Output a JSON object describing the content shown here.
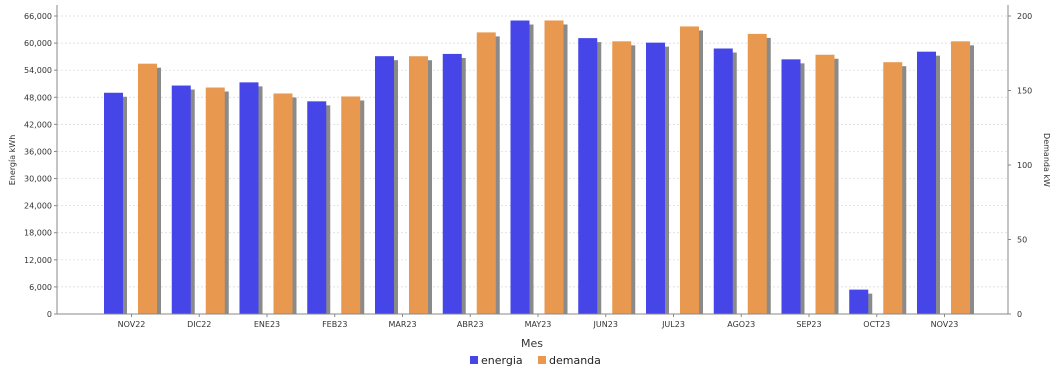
{
  "chart_data": {
    "type": "bar",
    "xlabel": "Mes",
    "ylabel_left": "Energía kWh",
    "ylabel_right": "Demanda kW",
    "categories": [
      "NOV22",
      "DIC22",
      "ENE23",
      "FEB23",
      "MAR23",
      "ABR23",
      "MAY23",
      "JUN23",
      "JUL23",
      "AGO23",
      "SEP23",
      "OCT23",
      "NOV23"
    ],
    "left_axis": {
      "min": 0,
      "max": 66000,
      "ticks": [
        0,
        6000,
        12000,
        18000,
        24000,
        30000,
        36000,
        42000,
        48000,
        54000,
        60000,
        66000
      ],
      "tick_labels": [
        "0",
        "6,000",
        "12,000",
        "18,000",
        "24,000",
        "30,000",
        "36,000",
        "42,000",
        "48,000",
        "54,000",
        "60,000",
        "66,000"
      ]
    },
    "right_axis": {
      "min": 0,
      "max": 200,
      "ticks": [
        0,
        50,
        100,
        150,
        200
      ],
      "tick_labels": [
        "0",
        "50",
        "100",
        "150",
        "200"
      ]
    },
    "series": [
      {
        "name": "energia",
        "axis": "left",
        "color": "#4545e8",
        "values": [
          49000,
          50600,
          51300,
          47100,
          57100,
          57600,
          65000,
          61100,
          60100,
          58800,
          56400,
          5400,
          58100
        ]
      },
      {
        "name": "demanda",
        "axis": "right",
        "color": "#e8994f",
        "values": [
          168,
          152,
          148,
          146,
          173,
          189,
          197,
          183,
          193,
          188,
          174,
          169,
          183
        ]
      }
    ],
    "grid": true,
    "legend_position": "bottom"
  }
}
